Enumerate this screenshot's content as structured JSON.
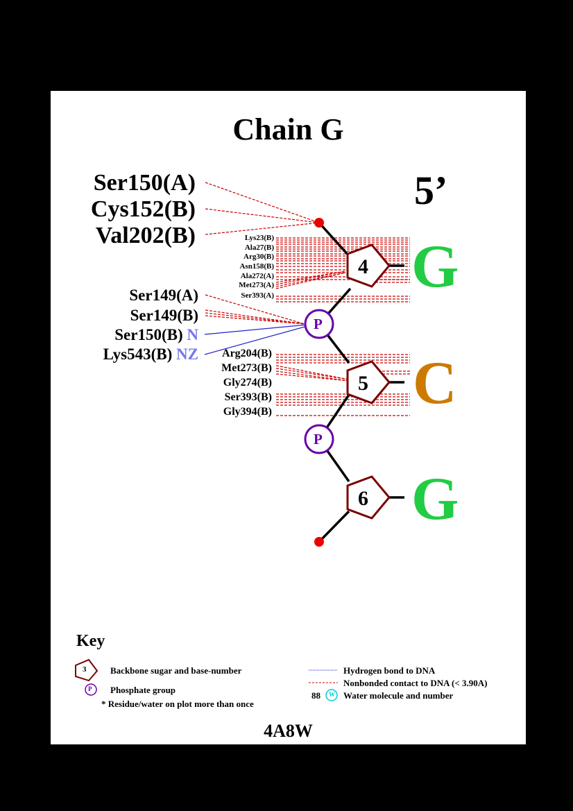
{
  "title": "Chain G",
  "end_label": "5’",
  "nucleotides": [
    {
      "number": "4",
      "base": "G",
      "base_color": "#22cc44"
    },
    {
      "number": "5",
      "base": "C",
      "base_color": "#cc7a00"
    },
    {
      "number": "6",
      "base": "G",
      "base_color": "#22cc44"
    }
  ],
  "phosphate_label": "P",
  "residues_phosphate_top": [
    "Ser150(A)",
    "Cys152(B)",
    "Val202(B)"
  ],
  "residues_sugar4": [
    "Lys23(B)",
    "Ala27(B)",
    "Arg30(B)",
    "Asn158(B)",
    "Ala272(A)",
    "Met273(A)",
    "Ser393(A)"
  ],
  "residues_phosphate1_nonbonded": [
    "Ser149(A)",
    "Ser149(B)"
  ],
  "residues_phosphate1_hbond": [
    {
      "residue": "Ser150(B)",
      "atom": "N"
    },
    {
      "residue": "Lys543(B)",
      "atom": "NZ"
    }
  ],
  "residues_sugar5": [
    "Arg204(B)",
    "Met273(B)",
    "Gly274(B)",
    "Ser393(B)",
    "Gly394(B)"
  ],
  "colors": {
    "sugar": "#7a0000",
    "phosphate": "#6600aa",
    "terminal_phosphate": "#ee0000",
    "nonbonded": "#cc0000",
    "hbond": "#2222cc",
    "water": "#00ccdd"
  },
  "key": {
    "heading": "Key",
    "sugar_example": "3",
    "sugar_desc": "Backbone sugar and base-number",
    "phosphate_example": "P",
    "phosphate_desc": "Phosphate group",
    "repeat_note": "* Residue/water on plot more than once",
    "hbond_desc": "Hydrogen bond to DNA",
    "nonbonded_desc": "Nonbonded contact to DNA (< 3.90A)",
    "water_number": "88",
    "water_example": "W",
    "water_desc": "Water molecule and number"
  },
  "pdb_id": "4A8W"
}
